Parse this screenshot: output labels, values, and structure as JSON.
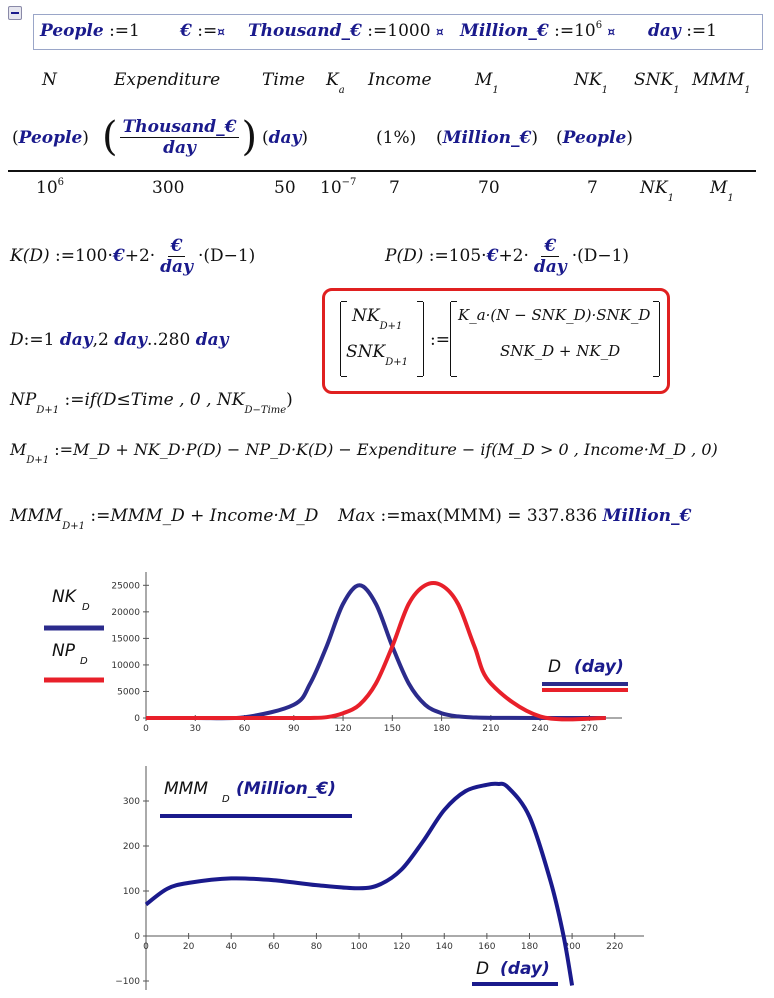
{
  "definitions": {
    "people": "People",
    "people_val": "1",
    "euro_sym": "€",
    "euro_val": "¤",
    "thousand": "Thousand_€",
    "thousand_val": "1000",
    "million": "Million_€",
    "million_base": "10",
    "million_exp": "6",
    "day": "day",
    "day_val": "1",
    "marker": "¤",
    "assign": ":="
  },
  "table": {
    "headers": [
      "N",
      "Expenditure",
      "Time",
      "K",
      "Income",
      "M",
      "NK",
      "SNK",
      "MMM"
    ],
    "header_subs": {
      "K": "a",
      "M": "1",
      "NK": "1",
      "SNK": "1",
      "MMM": "1"
    },
    "units": [
      "People",
      "Thousand_€",
      "day",
      "",
      "1%",
      "Million_€",
      "People"
    ],
    "unit_den": "day",
    "values": {
      "N_base": "10",
      "N_exp": "6",
      "Expenditure": "300",
      "Time": "50",
      "Ka_base": "10",
      "Ka_exp": "−7",
      "Income": "7",
      "M1": "70",
      "NK1": "7",
      "SNK1": "NK",
      "SNK1_sub": "1",
      "MMM1": "M",
      "MMM1_sub": "1"
    }
  },
  "equations": {
    "K_lhs": "K(D)",
    "K_rhs_a": "100·",
    "K_rhs_b": "+2·",
    "K_rhs_c": "·(D−1)",
    "P_lhs": "P(D)",
    "P_rhs_a": "105·",
    "P_rhs_b": "+2·",
    "P_rhs_c": "·(D−1)",
    "range_lhs": "D",
    "range_a": "1 ",
    "range_b": ",2 ",
    "range_c": "..280 ",
    "np_line": "NP",
    "np_sub": "D+1",
    "np_rhs": "if(D≤Time , 0 , NK",
    "np_rhs_sub": "D−Time",
    "np_close": ")",
    "m_line": "M",
    "m_sub": "D+1",
    "m_rhs": "M_D + NK_D·P(D) − NP_D·K(D) − Expenditure − if(M_D > 0 , Income·M_D , 0)",
    "mmm_lhs": "MMM",
    "mmm_sub": "D+1",
    "mmm_rhs": "MMM_D + Income·M_D",
    "max_lhs": "Max",
    "max_rhs": "max(MMM) = 337.836",
    "max_unit": "Million_€"
  },
  "matrix": {
    "lhs_top": "NK",
    "lhs_top_sub": "D+1",
    "lhs_bot": "SNK",
    "lhs_bot_sub": "D+1",
    "rhs_top": "K_a·(N − SNK_D)·SNK_D",
    "rhs_bot": "SNK_D + NK_D"
  },
  "chart_data": [
    {
      "type": "line",
      "x": [
        0,
        30,
        60,
        90,
        100,
        110,
        120,
        130,
        140,
        150,
        160,
        170,
        180,
        190,
        200,
        210,
        240,
        280
      ],
      "series": [
        {
          "name": "NK_D",
          "color": "#2b2b8c",
          "values": [
            0,
            10,
            150,
            2500,
            6500,
            13500,
            21500,
            25000,
            21500,
            13500,
            6500,
            2500,
            900,
            300,
            100,
            30,
            0,
            0
          ]
        },
        {
          "name": "NP_D",
          "color": "#e8202a",
          "values": [
            0,
            0,
            0,
            0,
            10,
            150,
            900,
            2500,
            6500,
            13500,
            21500,
            25000,
            25000,
            21500,
            13500,
            6500,
            300,
            0
          ]
        }
      ],
      "legend": [
        "NK",
        "NP"
      ],
      "legend_sub": "D",
      "xlabel": "D",
      "xunit": "day",
      "xticks": [
        0,
        30,
        60,
        90,
        120,
        150,
        180,
        210,
        240,
        270
      ],
      "yticks": [
        0,
        5000,
        10000,
        15000,
        20000,
        25000
      ],
      "xlim": [
        0,
        285
      ],
      "ylim": [
        0,
        26000
      ]
    },
    {
      "type": "line",
      "x": [
        0,
        10,
        20,
        40,
        60,
        80,
        100,
        110,
        120,
        130,
        140,
        150,
        160,
        165,
        170,
        180,
        190,
        196,
        200
      ],
      "series": [
        {
          "name": "MMM_D",
          "color": "#1a1a8c",
          "values": [
            70,
            105,
            118,
            128,
            124,
            113,
            106,
            115,
            148,
            210,
            280,
            322,
            336,
            338,
            330,
            265,
            120,
            0,
            -110
          ]
        }
      ],
      "legend": "MMM",
      "legend_sub": "D",
      "legend_unit": "Million_€",
      "xlabel": "D",
      "xunit": "day",
      "xticks": [
        0,
        20,
        40,
        60,
        80,
        100,
        120,
        140,
        160,
        180,
        200,
        220
      ],
      "yticks": [
        -100,
        0,
        100,
        200,
        300
      ],
      "xlim": [
        0,
        230
      ],
      "ylim": [
        -120,
        360
      ]
    }
  ]
}
